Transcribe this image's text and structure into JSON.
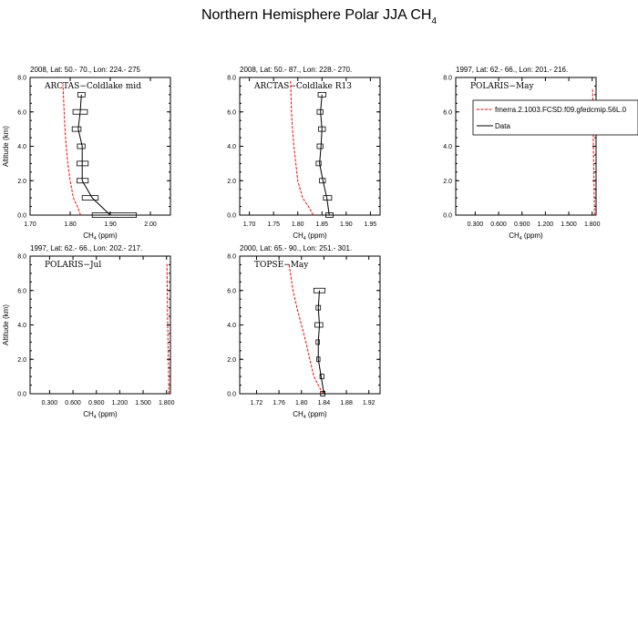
{
  "figure": {
    "title_main": "Northern Hemisphere Polar JJA CH",
    "title_sub": "4"
  },
  "chart_data": [
    {
      "type": "line",
      "header": "2008, Lat:  50.- 70., Lon: 224.- 275",
      "label": "ARCTAS−Coldlake mid",
      "xlim": [
        1.7,
        2.05
      ],
      "xticks": [
        1.7,
        1.8,
        1.9,
        2.0
      ],
      "xtick_labels": [
        "1.70",
        "1.80",
        "1.90",
        "2.00"
      ],
      "ylim": [
        0,
        8
      ],
      "yticks": [
        0,
        2,
        4,
        6,
        8
      ],
      "ytick_labels": [
        "0.0",
        "2.0",
        "4.0",
        "6.0",
        "8.0"
      ],
      "ylabel": "Altitude (km)",
      "xlabel": "CH",
      "xlabel_sub": "4",
      "xlabel_unit": " (ppm)",
      "model": {
        "x": [
          1.826,
          1.818,
          1.808,
          1.8,
          1.794,
          1.79,
          1.787,
          1.785,
          1.782
        ],
        "y": [
          0.0,
          0.5,
          1.0,
          2.0,
          3.0,
          4.0,
          5.0,
          6.0,
          7.6
        ]
      },
      "obs": {
        "x": [
          1.9,
          1.855,
          1.83,
          1.83,
          1.83,
          1.82,
          1.825,
          1.828
        ],
        "y": [
          0.0,
          1.0,
          2.0,
          3.0,
          4.0,
          5.0,
          6.0,
          7.0
        ]
      },
      "box": {
        "lo": [
          1.855,
          1.83,
          1.817,
          1.817,
          1.818,
          1.805,
          1.807,
          1.819
        ],
        "hi": [
          1.965,
          1.87,
          1.845,
          1.845,
          1.837,
          1.827,
          1.843,
          1.837
        ]
      }
    },
    {
      "type": "line",
      "header": "2008, Lat:  50.- 87., Lon: 228.- 270.",
      "label": "ARCTAS−Coldlake R13",
      "xlim": [
        1.68,
        1.97
      ],
      "xticks": [
        1.7,
        1.75,
        1.8,
        1.85,
        1.9,
        1.95
      ],
      "xtick_labels": [
        "1.70",
        "1.75",
        "1.80",
        "1.85",
        "1.90",
        "1.95"
      ],
      "ylim": [
        0,
        8
      ],
      "yticks": [
        0,
        2,
        4,
        6,
        8
      ],
      "ytick_labels": [
        "0.0",
        "2.0",
        "4.0",
        "6.0",
        "8.0"
      ],
      "ylabel": "",
      "xlabel": "CH",
      "xlabel_sub": "4",
      "xlabel_unit": " (ppm)",
      "model": {
        "x": [
          1.832,
          1.822,
          1.81,
          1.8,
          1.796,
          1.792,
          1.789,
          1.787,
          1.785
        ],
        "y": [
          0.0,
          0.5,
          1.0,
          2.0,
          3.0,
          4.0,
          5.0,
          6.0,
          7.8
        ]
      },
      "obs": {
        "x": [
          1.865,
          1.86,
          1.852,
          1.845,
          1.848,
          1.85,
          1.847,
          1.85
        ],
        "y": [
          0.0,
          1.0,
          2.0,
          3.0,
          4.0,
          5.0,
          6.0,
          7.0
        ]
      },
      "box": {
        "lo": [
          1.858,
          1.853,
          1.845,
          1.838,
          1.84,
          1.843,
          1.84,
          1.842
        ],
        "hi": [
          1.873,
          1.87,
          1.857,
          1.848,
          1.852,
          1.857,
          1.852,
          1.858
        ]
      }
    },
    {
      "type": "line",
      "header": "1997, Lat: 62.- 66., Lon: 201.- 216.",
      "label": "POLARIS−May",
      "xlim": [
        0.05,
        1.85
      ],
      "xticks": [
        0.3,
        0.6,
        0.9,
        1.2,
        1.5,
        1.8
      ],
      "xtick_labels": [
        "0.300",
        "0.600",
        "0.900",
        "1.200",
        "1.500",
        "1.800"
      ],
      "ylim": [
        0,
        8
      ],
      "yticks": [
        0,
        2,
        4,
        6,
        8
      ],
      "ytick_labels": [
        "0.0",
        "2.0",
        "4.0",
        "6.0",
        "8.0"
      ],
      "ylabel": "",
      "xlabel": "CH",
      "xlabel_sub": "4",
      "xlabel_unit": " (ppm)",
      "model": {
        "x": [
          1.83,
          1.823,
          1.815,
          1.81,
          1.805
        ],
        "y": [
          0.0,
          2.0,
          4.0,
          6.0,
          7.4
        ]
      },
      "legend": {
        "model_label": "fmerra.2.1003.FCSD.f09.gfedcmip.56L.0",
        "obs_label": "Data"
      }
    },
    {
      "type": "line",
      "header": "1997, Lat: 62.- 66., Lon: 202.- 217.",
      "label": "POLARIS−Jul",
      "xlim": [
        0.05,
        1.85
      ],
      "xticks": [
        0.3,
        0.6,
        0.9,
        1.2,
        1.5,
        1.8
      ],
      "xtick_labels": [
        "0.300",
        "0.600",
        "0.900",
        "1.200",
        "1.500",
        "1.800"
      ],
      "ylim": [
        0,
        8
      ],
      "yticks": [
        0,
        2,
        4,
        6,
        8
      ],
      "ytick_labels": [
        "0.0",
        "2.0",
        "4.0",
        "6.0",
        "8.0"
      ],
      "ylabel": "Altitude (km)",
      "xlabel": "CH",
      "xlabel_sub": "4",
      "xlabel_unit": " (ppm)",
      "model": {
        "x": [
          1.83,
          1.823,
          1.815,
          1.81,
          1.805
        ],
        "y": [
          0.0,
          2.0,
          4.0,
          6.0,
          7.6
        ]
      }
    },
    {
      "type": "line",
      "header": "2000, Lat: 65.- 90., Lon: 251.- 301.",
      "label": "TOPSE−May",
      "xlim": [
        1.69,
        1.94
      ],
      "xticks": [
        1.72,
        1.76,
        1.8,
        1.84,
        1.88,
        1.92
      ],
      "xtick_labels": [
        "1.72",
        "1.76",
        "1.80",
        "1.84",
        "1.88",
        "1.92"
      ],
      "ylim": [
        0,
        8
      ],
      "yticks": [
        0,
        2,
        4,
        6,
        8
      ],
      "ytick_labels": [
        "0.0",
        "2.0",
        "4.0",
        "6.0",
        "8.0"
      ],
      "ylabel": "",
      "xlabel": "CH",
      "xlabel_sub": "4",
      "xlabel_unit": " (ppm)",
      "model": {
        "x": [
          1.838,
          1.83,
          1.822,
          1.815,
          1.808,
          1.8,
          1.792,
          1.785,
          1.778
        ],
        "y": [
          0.0,
          0.5,
          1.0,
          2.0,
          3.0,
          4.0,
          5.0,
          6.0,
          7.5
        ]
      },
      "obs": {
        "x": [
          1.84,
          1.835,
          1.83,
          1.83,
          1.832,
          1.83,
          1.832
        ],
        "y": [
          0.0,
          1.0,
          2.0,
          3.0,
          4.0,
          5.0,
          6.0
        ]
      },
      "box": {
        "lo": [
          1.834,
          1.833,
          1.827,
          1.826,
          1.824,
          1.826,
          1.822
        ],
        "hi": [
          1.842,
          1.84,
          1.833,
          1.832,
          1.838,
          1.834,
          1.842
        ]
      }
    }
  ]
}
